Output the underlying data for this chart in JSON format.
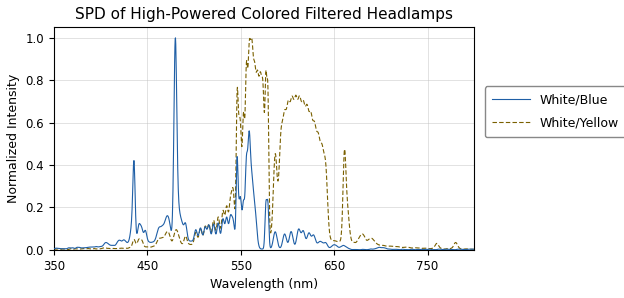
{
  "title": "SPD of High-Powered Colored Filtered Headlamps",
  "xlabel": "Wavelength (nm)",
  "ylabel": "Normalized Intensity",
  "xlim": [
    350,
    800
  ],
  "ylim": [
    0,
    1.05
  ],
  "xticks": [
    350,
    450,
    550,
    650,
    750
  ],
  "yticks": [
    0,
    0.2,
    0.4,
    0.6,
    0.8,
    1
  ],
  "blue_color": "#1f5fa6",
  "yellow_color": "#7a6000",
  "legend_labels": [
    "White/Blue",
    "White/Yellow"
  ],
  "title_fontsize": 11,
  "label_fontsize": 9
}
